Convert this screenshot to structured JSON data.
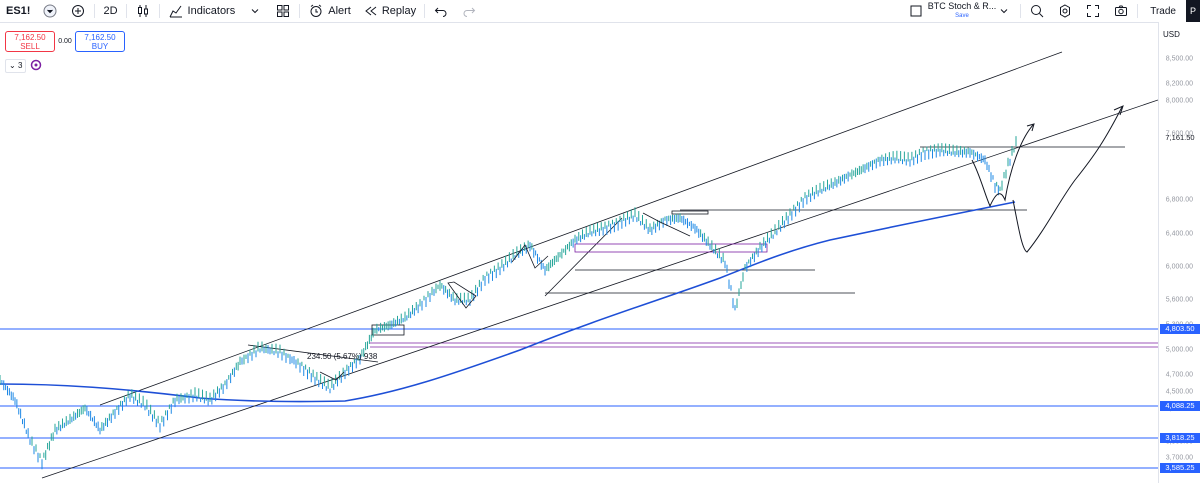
{
  "toolbar": {
    "symbol": "ES1!",
    "interval": "2D",
    "indicators_label": "Indicators",
    "alert_label": "Alert",
    "replay_label": "Replay",
    "template_name": "BTC Stoch & R...",
    "template_save": "Save",
    "trade_label": "Trade",
    "profile_initial": "P"
  },
  "order": {
    "sell_price": "7,162.50",
    "sell_label": "SELL",
    "spread": "0.00",
    "buy_price": "7,162.50",
    "buy_label": "BUY"
  },
  "indicators_count": "3",
  "currency": "USD",
  "measure_label": "234.50 (5.67%) 938",
  "price_axis": {
    "ticks": [
      "8,500.00",
      "8,200.00",
      "8,000.00",
      "7,600.00",
      "6,800.00",
      "6,400.00",
      "6,000.00",
      "5,600.00",
      "5,300.00",
      "5,000.00",
      "4,700.00",
      "4,500.00",
      "4,300.00",
      "3,900.00",
      "3,700.00"
    ],
    "current_price": "7,161.50",
    "hline_tags": [
      "4,803.50",
      "4,088.25",
      "3,818.25",
      "3,585.25"
    ]
  },
  "colors": {
    "blue": "#2962ff",
    "price_up": "#26a69a",
    "price_line": "#1e88e5",
    "ma": "#1e4fd6",
    "red": "#f23645"
  }
}
